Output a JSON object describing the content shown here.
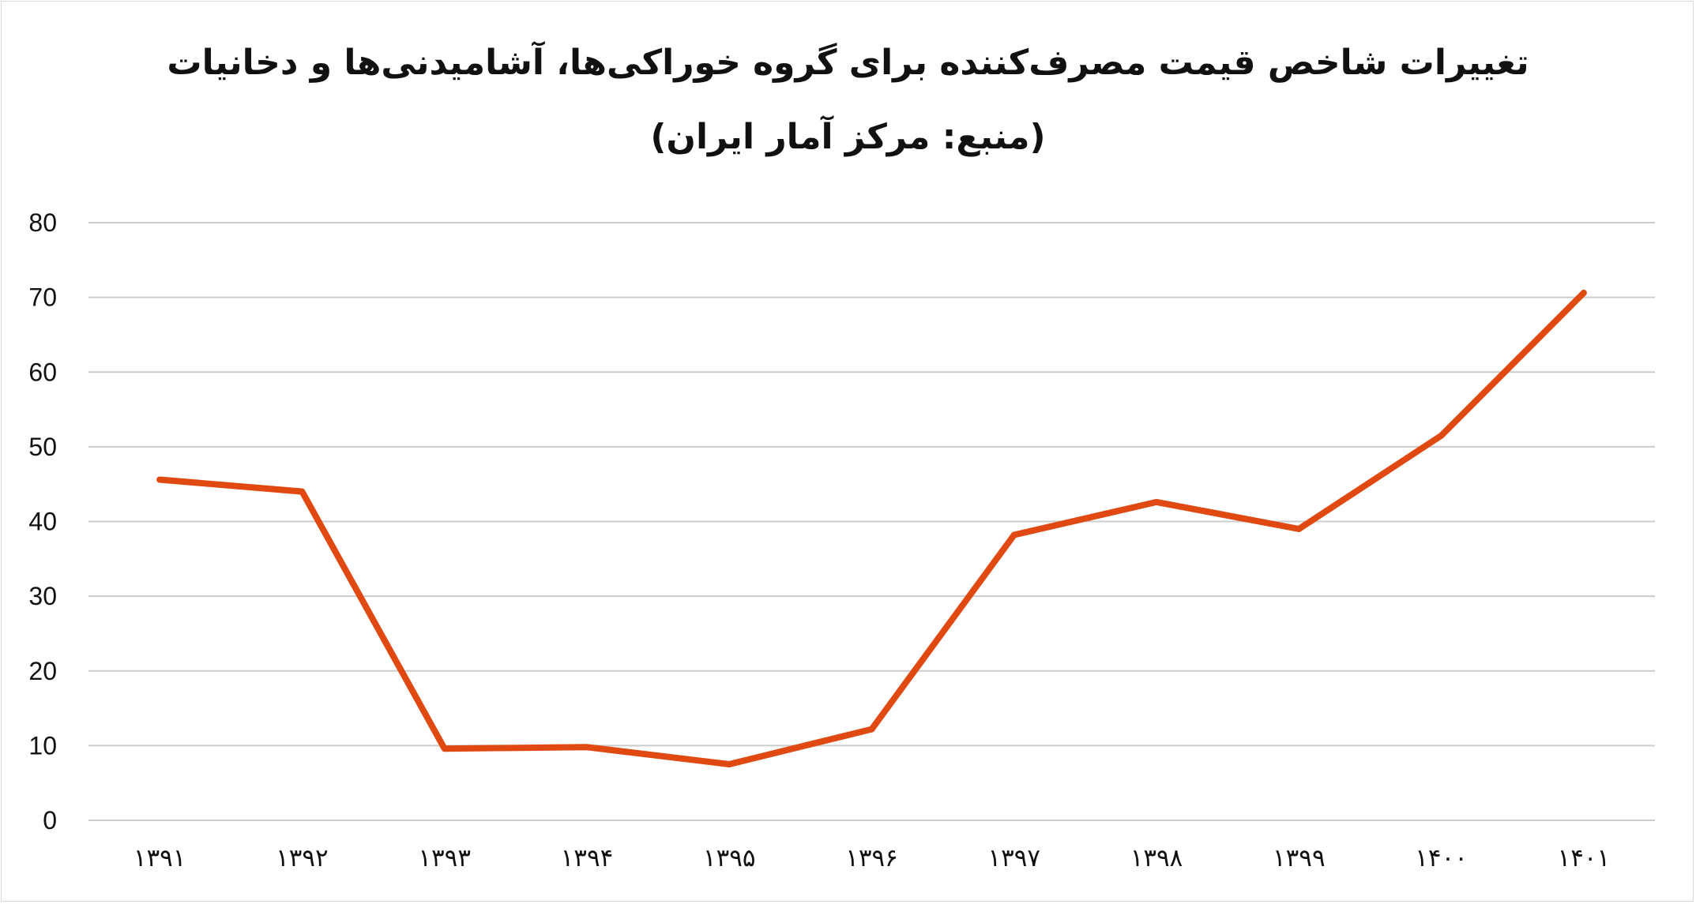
{
  "chart_data": {
    "type": "line",
    "title": "تغییرات شاخص قیمت مصرف‌کننده برای گروه خوراکی‌ها، آشامیدنی‌ها و دخانیات",
    "subtitle": "(منبع: مرکز آمار ایران)",
    "xlabel": "",
    "ylabel": "",
    "categories": [
      "۱۳۹۱",
      "۱۳۹۲",
      "۱۳۹۳",
      "۱۳۹۴",
      "۱۳۹۵",
      "۱۳۹۶",
      "۱۳۹۷",
      "۱۳۹۸",
      "۱۳۹۹",
      "۱۴۰۰",
      "۱۴۰۱"
    ],
    "series": [
      {
        "values": [
          45.6,
          44.0,
          9.6,
          9.8,
          7.5,
          12.2,
          38.2,
          42.6,
          39.0,
          51.5,
          70.6
        ],
        "color": "#e04a12"
      }
    ],
    "ylim": [
      0,
      80
    ],
    "yticks": [
      0,
      10,
      20,
      30,
      40,
      50,
      60,
      70,
      80
    ],
    "grid": true,
    "legend": "none"
  }
}
